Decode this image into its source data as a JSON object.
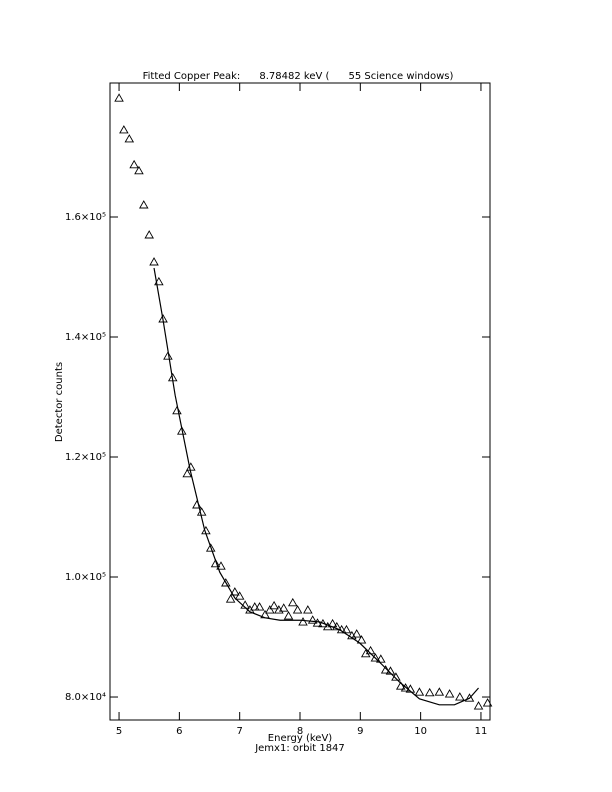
{
  "chart_data": {
    "type": "scatter",
    "title": "Fitted Copper Peak:      8.78482 keV (      55 Science windows)",
    "xlabel": "Energy (keV)",
    "subtitle": "Jemx1: orbit 1847",
    "ylabel": "Detector counts",
    "xlim": [
      4.85,
      11.15
    ],
    "ylim": [
      76170,
      182330
    ],
    "xticks": [
      5,
      6,
      7,
      8,
      9,
      10,
      11
    ],
    "yticks": [
      {
        "value": 80000,
        "label": "8.0×10⁴"
      },
      {
        "value": 100000,
        "label": "1.0×10⁵"
      },
      {
        "value": 120000,
        "label": "1.2×10⁵"
      },
      {
        "value": 140000,
        "label": "1.4×10⁵"
      },
      {
        "value": 160000,
        "label": "1.6×10⁵"
      }
    ],
    "series": [
      {
        "type": "scatter",
        "marker": "triangle",
        "color": "#000000",
        "x": [
          5.0,
          5.08,
          5.17,
          5.25,
          5.33,
          5.41,
          5.5,
          5.58,
          5.66,
          5.73,
          5.81,
          5.89,
          5.96,
          6.04,
          6.13,
          6.19,
          6.29,
          6.37,
          6.44,
          6.52,
          6.6,
          6.69,
          6.77,
          6.85,
          6.92,
          7.0,
          7.09,
          7.17,
          7.25,
          7.33,
          7.42,
          7.5,
          7.57,
          7.65,
          7.73,
          7.81,
          7.88,
          7.96,
          8.05,
          8.13,
          8.21,
          8.29,
          8.38,
          8.46,
          8.54,
          8.61,
          8.69,
          8.77,
          8.86,
          8.94,
          9.02,
          9.09,
          9.17,
          9.25,
          9.34,
          9.42,
          9.5,
          9.59,
          9.67,
          9.75,
          9.83,
          9.98,
          10.15,
          10.31,
          10.48,
          10.65,
          10.81,
          10.96,
          11.11
        ],
        "values": [
          179800,
          174500,
          173000,
          168700,
          167700,
          162000,
          157000,
          152500,
          149200,
          143000,
          136800,
          133200,
          127700,
          124300,
          117200,
          118300,
          112000,
          110800,
          107700,
          104800,
          102200,
          101800,
          99000,
          96300,
          97500,
          96800,
          95300,
          94500,
          95000,
          95000,
          93700,
          94500,
          95200,
          94500,
          94800,
          93500,
          95700,
          94500,
          92500,
          94500,
          92800,
          92300,
          92200,
          91700,
          92200,
          91700,
          91200,
          91200,
          90200,
          90500,
          89500,
          87200,
          87700,
          86500,
          86300,
          84500,
          84300,
          83300,
          81800,
          81500,
          81300,
          80800,
          80700,
          80800,
          80500,
          80000,
          79800,
          78500,
          79000
        ]
      },
      {
        "type": "line",
        "color": "#000000",
        "x": [
          5.58,
          5.73,
          5.93,
          6.18,
          6.42,
          6.67,
          6.92,
          7.17,
          7.42,
          7.67,
          8.0,
          8.33,
          8.66,
          8.99,
          9.32,
          9.65,
          9.98,
          10.31,
          10.56,
          10.81,
          10.96
        ],
        "values": [
          151500,
          142800,
          130300,
          117800,
          107800,
          100800,
          96500,
          94200,
          93200,
          92800,
          92800,
          92500,
          91200,
          89000,
          85800,
          82500,
          79700,
          78700,
          78700,
          79800,
          81500
        ]
      }
    ]
  }
}
